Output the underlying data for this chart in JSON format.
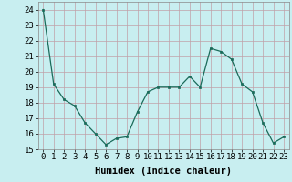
{
  "x": [
    0,
    1,
    2,
    3,
    4,
    5,
    6,
    7,
    8,
    9,
    10,
    11,
    12,
    13,
    14,
    15,
    16,
    17,
    18,
    19,
    20,
    21,
    22,
    23
  ],
  "y": [
    24.0,
    19.2,
    18.2,
    17.8,
    16.7,
    16.0,
    15.3,
    15.7,
    15.8,
    17.4,
    18.7,
    19.0,
    19.0,
    19.0,
    19.7,
    19.0,
    21.5,
    21.3,
    20.8,
    19.2,
    18.7,
    16.7,
    15.4,
    15.8
  ],
  "line_color": "#1a6b5a",
  "marker_color": "#1a6b5a",
  "bg_color": "#c8eef0",
  "grid_color": "#c0a0a8",
  "xlabel": "Humidex (Indice chaleur)",
  "ylabel_ticks": [
    15,
    16,
    17,
    18,
    19,
    20,
    21,
    22,
    23,
    24
  ],
  "xlim": [
    -0.5,
    23.5
  ],
  "ylim": [
    15,
    24.5
  ],
  "tick_fontsize": 6.5,
  "xlabel_fontsize": 7.5
}
